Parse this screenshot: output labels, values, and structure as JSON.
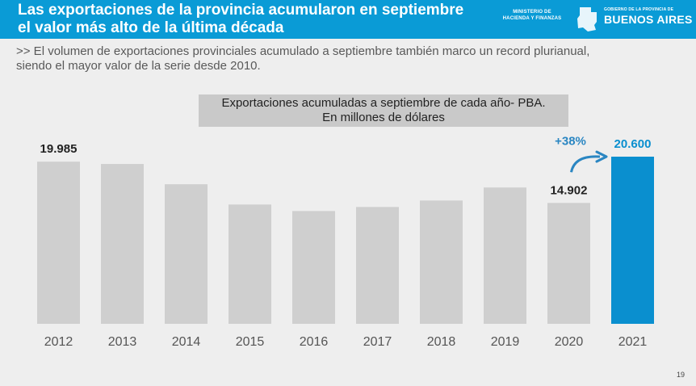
{
  "header": {
    "title_line1": "Las exportaciones de la provincia acumularon en septiembre",
    "title_line2": "el valor más alto de la última década",
    "ministerio_line1": "MINISTERIO DE",
    "ministerio_line2": "HACIENDA Y FINANZAS",
    "gobierno_small": "GOBIERNO DE LA PROVINCIA DE",
    "gobierno_big": "BUENOS AIRES"
  },
  "subtitle": {
    "line1": ">> El volumen de exportaciones provinciales acumulado a septiembre también marco un record plurianual,",
    "line2": "siendo el mayor valor de la serie desde 2010."
  },
  "page_number": "19",
  "colors": {
    "header_bg": "#0a9bd6",
    "bar_default": "#cfcfcf",
    "bar_highlight": "#0a8fcf",
    "annotation": "#2a86c2"
  },
  "chart_data": {
    "type": "bar",
    "title": "Exportaciones acumuladas a septiembre de cada año- PBA.",
    "subtitle": "En millones de dólares",
    "categories": [
      "2012",
      "2013",
      "2014",
      "2015",
      "2016",
      "2017",
      "2018",
      "2019",
      "2020",
      "2021"
    ],
    "values": [
      19985,
      19700,
      17200,
      14700,
      13900,
      14400,
      15200,
      16800,
      14902,
      20600
    ],
    "data_labels": {
      "0": "19.985",
      "8": "14.902",
      "9": "20.600"
    },
    "highlight_index": 9,
    "annotation": {
      "text": "+38%",
      "from_index": 8,
      "to_index": 9
    },
    "ylim": [
      0,
      21000
    ],
    "grid": false,
    "legend": "none"
  }
}
